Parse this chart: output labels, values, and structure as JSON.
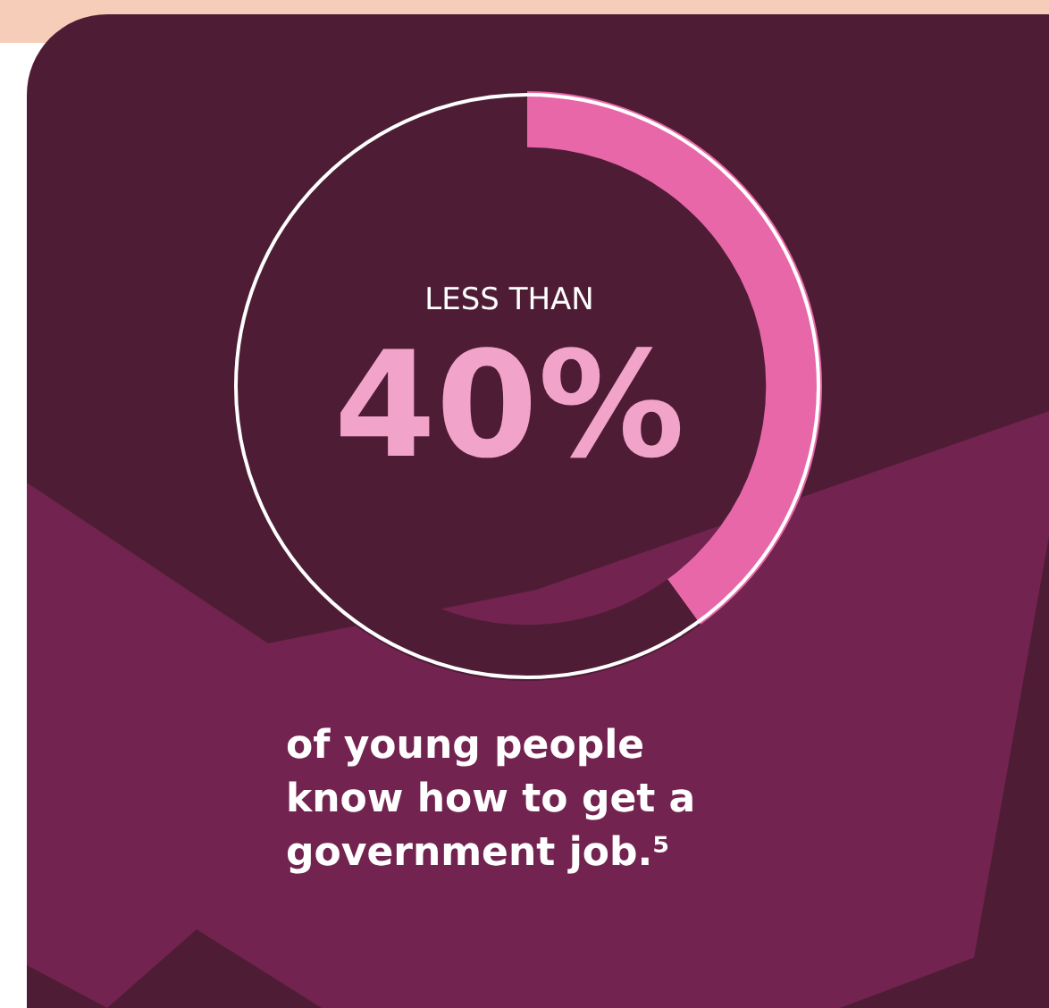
{
  "chart_data": {
    "type": "donut",
    "categories": [
      null,
      null
    ],
    "values": [
      40,
      60
    ],
    "colors": [
      "#e767a9",
      "#4e1d35"
    ],
    "annotations": [
      "LESS THAN",
      "40%",
      "of young people know how to get a government job.⁵"
    ]
  }
}
